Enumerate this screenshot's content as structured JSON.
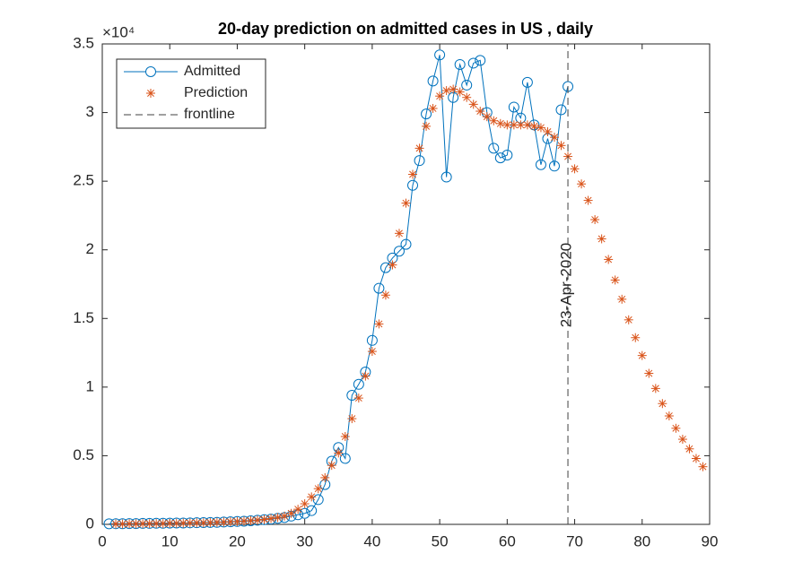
{
  "chart_data": {
    "type": "line",
    "title": "20-day prediction on admitted cases in US , daily",
    "y_exponent": "×10⁴",
    "annotation": "23-Apr-2020",
    "xlim": [
      0,
      90
    ],
    "xticks": [
      0,
      10,
      20,
      30,
      40,
      50,
      60,
      70,
      80,
      90
    ],
    "ylim": [
      0,
      3.5
    ],
    "yticks": [
      0,
      0.5,
      1,
      1.5,
      2,
      2.5,
      3,
      3.5
    ],
    "legend": "upper-left",
    "series": [
      {
        "name": "Admitted",
        "color": "#0072BD",
        "marker": "circle",
        "x": [
          1,
          2,
          3,
          4,
          5,
          6,
          7,
          8,
          9,
          10,
          11,
          12,
          13,
          14,
          15,
          16,
          17,
          18,
          19,
          20,
          21,
          22,
          23,
          24,
          25,
          26,
          27,
          28,
          29,
          30,
          31,
          32,
          33,
          34,
          35,
          36,
          37,
          38,
          39,
          40,
          41,
          42,
          43,
          44,
          45,
          46,
          47,
          48,
          49,
          50,
          51,
          52,
          53,
          54,
          55,
          56,
          57,
          58,
          59,
          60,
          61,
          62,
          63,
          64,
          65,
          66,
          67,
          68,
          69
        ],
        "values": [
          0.004,
          0.005,
          0.005,
          0.006,
          0.006,
          0.007,
          0.007,
          0.008,
          0.008,
          0.009,
          0.01,
          0.01,
          0.011,
          0.012,
          0.013,
          0.014,
          0.015,
          0.017,
          0.019,
          0.021,
          0.023,
          0.026,
          0.03,
          0.034,
          0.038,
          0.044,
          0.05,
          0.06,
          0.07,
          0.08,
          0.1,
          0.18,
          0.29,
          0.46,
          0.56,
          0.48,
          0.94,
          1.02,
          1.11,
          1.34,
          1.72,
          1.87,
          1.94,
          1.99,
          2.04,
          2.47,
          2.65,
          2.99,
          3.23,
          3.42,
          2.53,
          3.11,
          3.35,
          3.2,
          3.36,
          3.38,
          3.0,
          2.74,
          2.67,
          2.69,
          3.04,
          2.96,
          3.22,
          2.91,
          2.62,
          2.81,
          2.61,
          3.02,
          3.19
        ]
      },
      {
        "name": "Prediction",
        "color": "#D95319",
        "marker": "asterisk",
        "x": [
          2,
          3,
          4,
          5,
          6,
          7,
          8,
          9,
          10,
          11,
          12,
          13,
          14,
          15,
          16,
          17,
          18,
          19,
          20,
          21,
          22,
          23,
          24,
          25,
          26,
          27,
          28,
          29,
          30,
          31,
          32,
          33,
          34,
          35,
          36,
          37,
          38,
          39,
          40,
          41,
          42,
          43,
          44,
          45,
          46,
          47,
          48,
          49,
          50,
          51,
          52,
          53,
          54,
          55,
          56,
          57,
          58,
          59,
          60,
          61,
          62,
          63,
          64,
          65,
          66,
          67,
          68,
          69,
          70,
          71,
          72,
          73,
          74,
          75,
          76,
          77,
          78,
          79,
          80,
          81,
          82,
          83,
          84,
          85,
          86,
          87,
          88,
          89
        ],
        "values": [
          0.003,
          0.003,
          0.004,
          0.004,
          0.005,
          0.005,
          0.006,
          0.006,
          0.007,
          0.008,
          0.009,
          0.01,
          0.011,
          0.012,
          0.013,
          0.015,
          0.017,
          0.019,
          0.021,
          0.024,
          0.027,
          0.031,
          0.036,
          0.042,
          0.05,
          0.06,
          0.08,
          0.11,
          0.15,
          0.2,
          0.26,
          0.34,
          0.43,
          0.52,
          0.64,
          0.77,
          0.92,
          1.08,
          1.26,
          1.46,
          1.67,
          1.89,
          2.12,
          2.34,
          2.55,
          2.74,
          2.9,
          3.03,
          3.12,
          3.16,
          3.17,
          3.15,
          3.11,
          3.06,
          3.01,
          2.97,
          2.94,
          2.92,
          2.91,
          2.91,
          2.91,
          2.91,
          2.9,
          2.89,
          2.86,
          2.82,
          2.76,
          2.68,
          2.59,
          2.48,
          2.36,
          2.22,
          2.08,
          1.93,
          1.78,
          1.64,
          1.49,
          1.36,
          1.23,
          1.1,
          0.99,
          0.88,
          0.79,
          0.7,
          0.62,
          0.55,
          0.48,
          0.42
        ]
      },
      {
        "name": "frontline",
        "color": "#404040",
        "marker": "dashed",
        "x": [
          69,
          69
        ],
        "values": [
          0,
          3.5
        ]
      }
    ]
  }
}
